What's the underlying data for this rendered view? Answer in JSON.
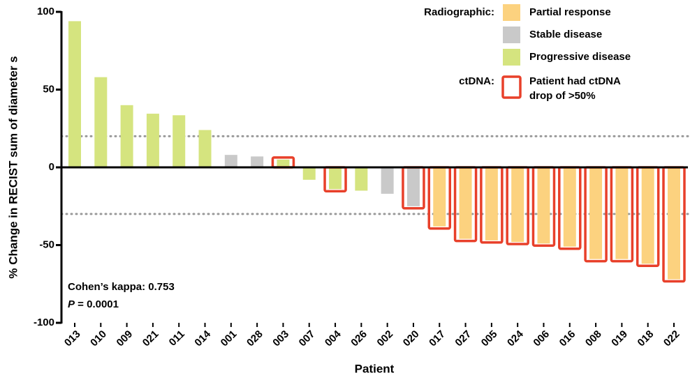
{
  "chart_data": {
    "type": "bar",
    "y_label": "% Change in RECIST sum of diameter s",
    "x_label": "Patient",
    "categories": [
      "013",
      "010",
      "009",
      "021",
      "011",
      "014",
      "001",
      "028",
      "003",
      "007",
      "004",
      "026",
      "002",
      "020",
      "017",
      "027",
      "005",
      "024",
      "006",
      "016",
      "008",
      "019",
      "018",
      "022"
    ],
    "legend_title": "Radiographic:",
    "series": [
      {
        "name": "Partial response",
        "color": "#fcd27f",
        "values": [
          null,
          null,
          null,
          null,
          null,
          null,
          null,
          null,
          null,
          null,
          null,
          null,
          null,
          null,
          -38,
          -46,
          -47,
          -48,
          -49,
          -51,
          -59,
          -59,
          -62,
          -72
        ]
      },
      {
        "name": "Stable disease",
        "color": "#c9c9c9",
        "values": [
          null,
          null,
          null,
          null,
          null,
          null,
          8,
          7,
          null,
          null,
          null,
          null,
          -17,
          -25,
          null,
          null,
          null,
          null,
          null,
          null,
          null,
          null,
          null,
          null
        ]
      },
      {
        "name": "Progressive disease",
        "color": "#d5e47f",
        "values": [
          94,
          58,
          40,
          34.5,
          33.5,
          24,
          null,
          null,
          5,
          -8,
          -14,
          -15,
          null,
          null,
          null,
          null,
          null,
          null,
          null,
          null,
          null,
          null,
          null,
          null
        ]
      }
    ],
    "ctdna_title": "ctDNA:",
    "ctdna_label": [
      "Patient had ctDNA",
      "drop of >50%"
    ],
    "ctdna_color": "#e8402a",
    "ctdna_drop": [
      false,
      false,
      false,
      false,
      false,
      false,
      false,
      false,
      true,
      false,
      true,
      false,
      false,
      true,
      true,
      true,
      true,
      true,
      true,
      true,
      true,
      true,
      true,
      true
    ],
    "ylim": [
      -100,
      100
    ],
    "yticks": [
      100,
      50,
      0,
      -50,
      -100
    ],
    "reference_lines": [
      20,
      -30
    ],
    "annotation": "Cohen’s kappa: 0.753",
    "p_value": {
      "symbol": "P",
      "text": " = 0.0001"
    }
  }
}
